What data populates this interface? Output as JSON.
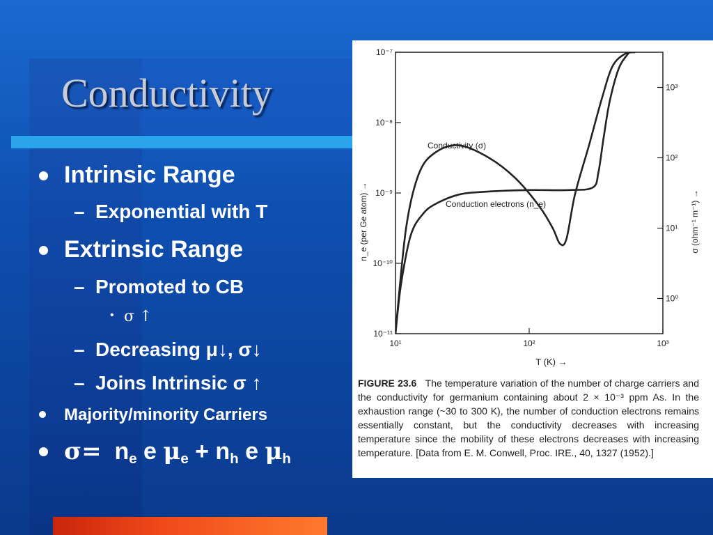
{
  "slide": {
    "title": "Conductivity",
    "bullets": {
      "intrinsic": "Intrinsic Range",
      "exponential": "Exponential with T",
      "extrinsic": "Extrinsic Range",
      "promoted": "Promoted to CB",
      "sigma_up": "σ ↑",
      "decreasing": "Decreasing μ↓, σ↓",
      "joins": "Joins Intrinsic σ ↑",
      "majority": "Majority/minority Carriers",
      "eq_sigma": "σ=",
      "eq_ne": "n",
      "eq_e1": "e",
      "eq_e2": "e",
      "eq_mue": "μ",
      "eq_sub_e1": "e",
      "eq_sub_e2": "e",
      "eq_plus": "+",
      "eq_nh": "n",
      "eq_sub_h1": "h",
      "eq_e3": "e",
      "eq_muh": "μ",
      "eq_sub_h2": "h"
    },
    "colors": {
      "bullet_dot": "#ffffff",
      "rule": "#2aa4ea",
      "accent_bar": "#f04a1a"
    }
  },
  "figure": {
    "caption_title": "FIGURE 23.6",
    "caption_text": "The temperature variation of the number of charge carriers and the conductivity for germanium containing about 2 × 10⁻³ ppm As. In the exhaustion range (~30 to 300 K), the number of conduction electrons remains essentially constant, but the conductivity decreases with increasing temperature since the mobility of these electrons decreases with increasing temperature. [Data from E. M. Conwell, Proc. IRE., 40, 1327 (1952).]"
  },
  "chart_data": {
    "type": "line",
    "title": "",
    "xlabel": "T (K) →",
    "ylabel_left": "n_e (per Ge atom) →",
    "ylabel_right": "σ (ohm⁻¹ m⁻¹) →",
    "x_scale": "log",
    "y_scale": "log",
    "xlim": [
      10,
      1000
    ],
    "ylim_left": [
      1e-11,
      1e-07
    ],
    "ylim_right": [
      0.316,
      3162
    ],
    "x_ticks": [
      "10¹",
      "10²",
      "10³"
    ],
    "x_tick_values": [
      10,
      100,
      1000
    ],
    "y_left_ticks": [
      "10⁻¹¹",
      "10⁻¹⁰",
      "10⁻⁹",
      "10⁻⁸",
      "10⁻⁷"
    ],
    "y_left_tick_values": [
      1e-11,
      1e-10,
      1e-09,
      1e-08,
      1e-07
    ],
    "y_right_ticks": [
      "10⁰",
      "10¹",
      "10²",
      "10³"
    ],
    "y_right_tick_values": [
      1,
      10,
      100,
      1000
    ],
    "series": [
      {
        "name": "Conductivity (σ)",
        "axis": "right",
        "x": [
          10,
          12,
          15,
          20,
          30,
          50,
          80,
          120,
          150,
          170,
          190,
          220,
          280,
          350,
          420,
          520,
          620
        ],
        "y": [
          0.32,
          10,
          60,
          120,
          150,
          100,
          50,
          20,
          10,
          6,
          7,
          30,
          150,
          700,
          2000,
          3000,
          3162
        ]
      },
      {
        "name": "Conduction electrons (n_e)",
        "axis": "left",
        "x": [
          10,
          11,
          13,
          16,
          20,
          30,
          50,
          100,
          200,
          300,
          330,
          360,
          400,
          470,
          560
        ],
        "y": [
          1e-11,
          5e-11,
          2.5e-10,
          5e-10,
          7e-10,
          9.5e-10,
          1.05e-09,
          1.1e-09,
          1.1e-09,
          1.2e-09,
          2e-09,
          6e-09,
          2e-08,
          6e-08,
          1e-07
        ]
      }
    ],
    "annotations": [
      "Conductivity (σ)",
      "Conduction electrons (n_e)"
    ],
    "grid": false,
    "legend": "none"
  }
}
